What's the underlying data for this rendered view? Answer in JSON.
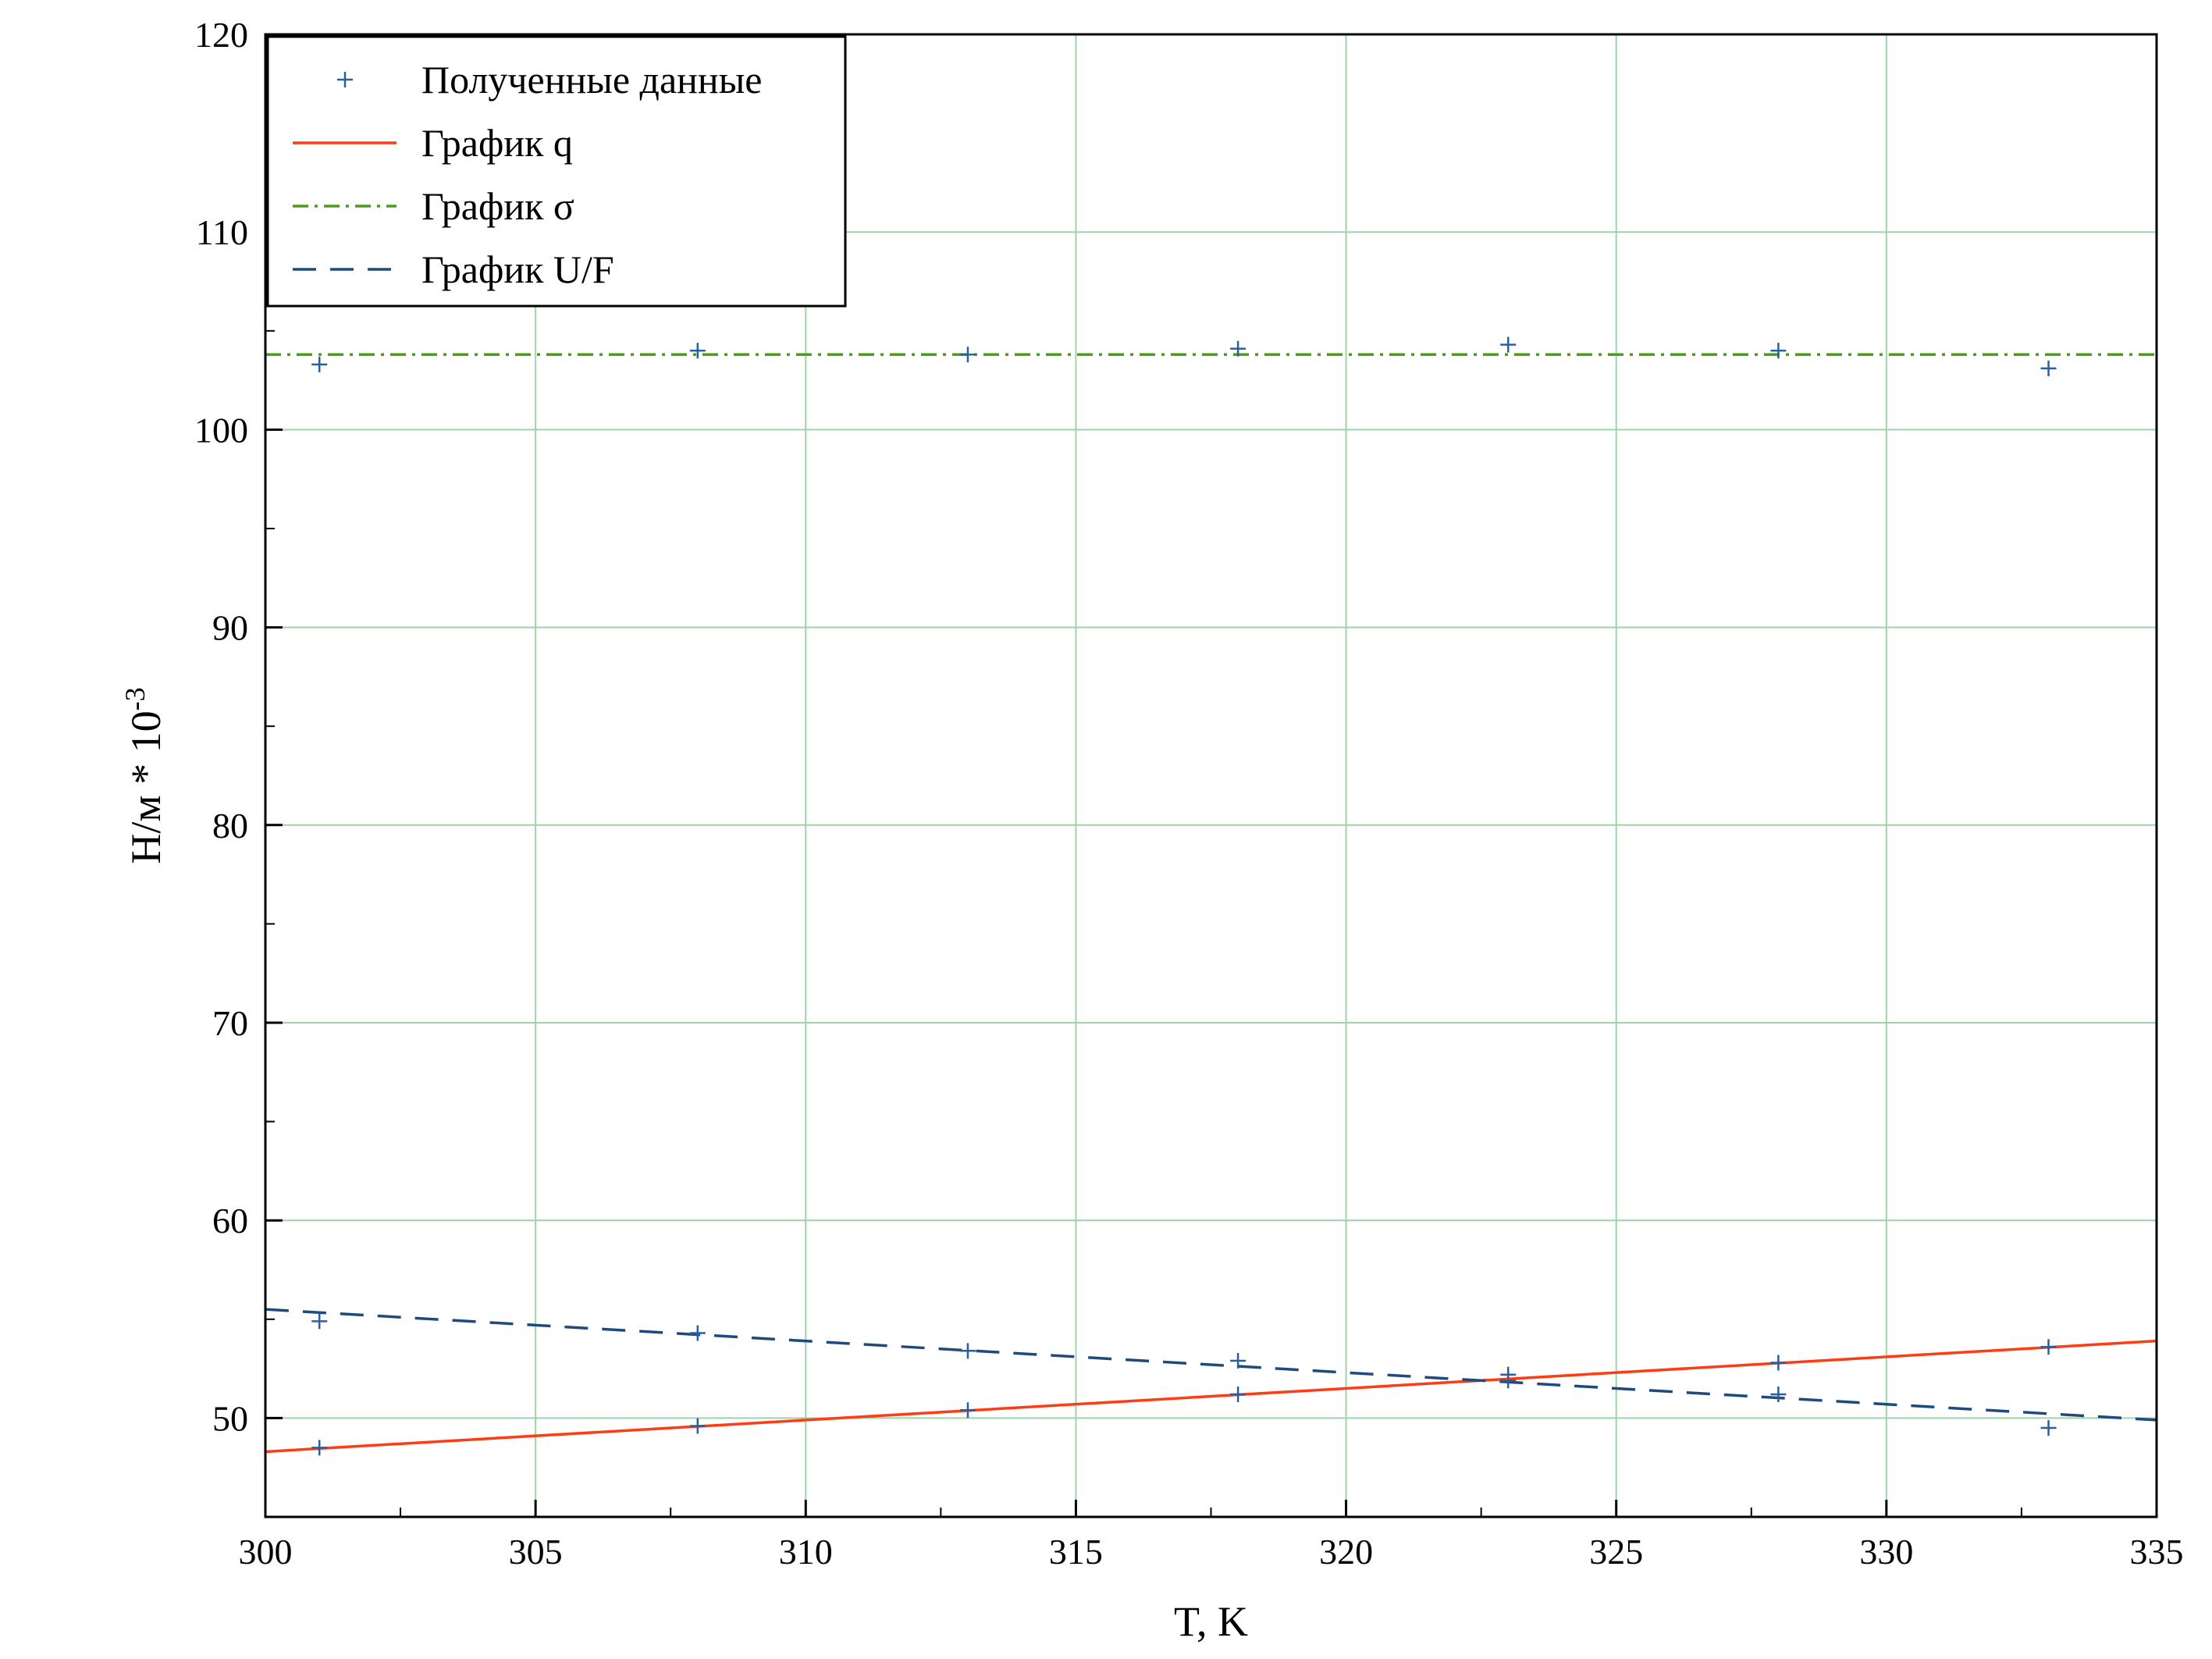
{
  "chart_data": {
    "type": "scatter",
    "xlabel": "T, K",
    "ylabel": "Н/м * 10",
    "ylabel_superscript": "-3",
    "xlim": [
      300,
      335
    ],
    "ylim": [
      45,
      120
    ],
    "x_ticks": [
      300,
      305,
      310,
      315,
      320,
      325,
      330,
      335
    ],
    "y_ticks": [
      50,
      60,
      70,
      80,
      90,
      100,
      110,
      120
    ],
    "grid": true,
    "grid_color": "#9fd3a8",
    "legend_position": "top-left",
    "scatter": {
      "name": "Полученные данные",
      "color": "#2a5f9e",
      "points": [
        {
          "x": 301,
          "y": 103.3
        },
        {
          "x": 308,
          "y": 104.0
        },
        {
          "x": 313,
          "y": 103.8
        },
        {
          "x": 318,
          "y": 104.1
        },
        {
          "x": 323,
          "y": 104.3
        },
        {
          "x": 328,
          "y": 104.0
        },
        {
          "x": 333,
          "y": 103.1
        },
        {
          "x": 301,
          "y": 54.9
        },
        {
          "x": 308,
          "y": 54.3
        },
        {
          "x": 313,
          "y": 53.4
        },
        {
          "x": 318,
          "y": 52.9
        },
        {
          "x": 323,
          "y": 52.2
        },
        {
          "x": 328,
          "y": 51.2
        },
        {
          "x": 333,
          "y": 49.5
        },
        {
          "x": 301,
          "y": 48.5
        },
        {
          "x": 308,
          "y": 49.6
        },
        {
          "x": 313,
          "y": 50.4
        },
        {
          "x": 318,
          "y": 51.2
        },
        {
          "x": 323,
          "y": 51.9
        },
        {
          "x": 328,
          "y": 52.8
        },
        {
          "x": 333,
          "y": 53.6
        }
      ]
    },
    "series": [
      {
        "name": "График q",
        "color": "#ff3c14",
        "dash": "",
        "x": [
          300,
          335
        ],
        "y": [
          48.3,
          53.9
        ]
      },
      {
        "name": "График σ",
        "color": "#4f9a1e",
        "dash": "20,8,4,8",
        "x": [
          300,
          335
        ],
        "y": [
          103.8,
          103.8
        ]
      },
      {
        "name": "График U/F",
        "color": "#1f4a7d",
        "dash": "30,18",
        "x": [
          300,
          335
        ],
        "y": [
          55.5,
          49.9
        ]
      }
    ]
  }
}
